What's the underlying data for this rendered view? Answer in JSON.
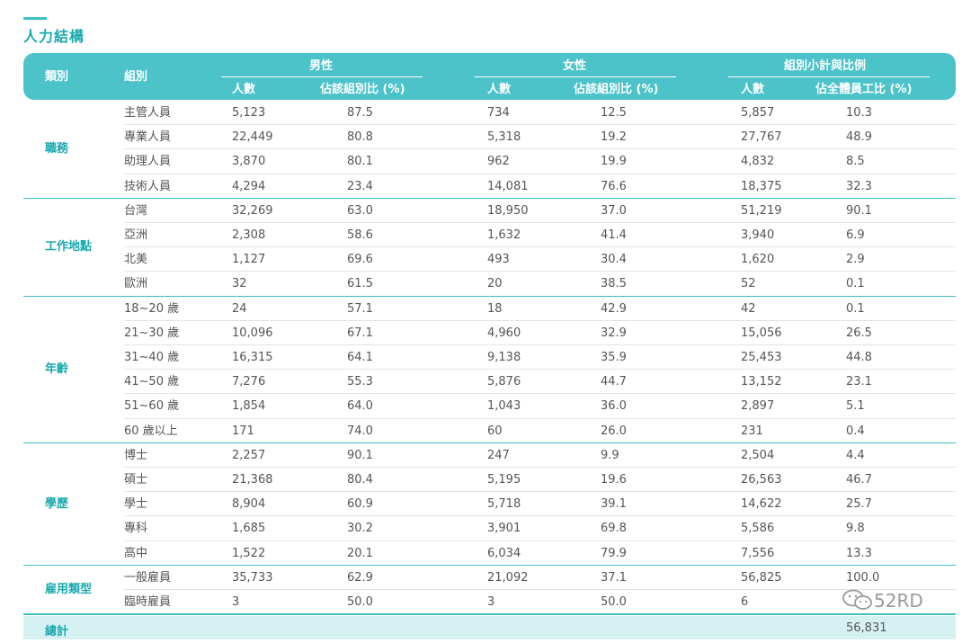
{
  "title": "人力結構",
  "header": {
    "category": "類別",
    "group": "組別",
    "male": "男性",
    "female": "女性",
    "subtotal": "組別小計與比例",
    "count": "人數",
    "pct_group": "佔該組別比 (%)",
    "pct_all": "佔全體員工比 (%)"
  },
  "categories": [
    {
      "name": "職務",
      "rows": [
        [
          "主管人員",
          "5,123",
          "87.5",
          "734",
          "12.5",
          "5,857",
          "10.3"
        ],
        [
          "專業人員",
          "22,449",
          "80.8",
          "5,318",
          "19.2",
          "27,767",
          "48.9"
        ],
        [
          "助理人員",
          "3,870",
          "80.1",
          "962",
          "19.9",
          "4,832",
          "8.5"
        ],
        [
          "技術人員",
          "4,294",
          "23.4",
          "14,081",
          "76.6",
          "18,375",
          "32.3"
        ]
      ]
    },
    {
      "name": "工作地點",
      "rows": [
        [
          "台灣",
          "32,269",
          "63.0",
          "18,950",
          "37.0",
          "51,219",
          "90.1"
        ],
        [
          "亞洲",
          "2,308",
          "58.6",
          "1,632",
          "41.4",
          "3,940",
          "6.9"
        ],
        [
          "北美",
          "1,127",
          "69.6",
          "493",
          "30.4",
          "1,620",
          "2.9"
        ],
        [
          "歐洲",
          "32",
          "61.5",
          "20",
          "38.5",
          "52",
          "0.1"
        ]
      ]
    },
    {
      "name": "年齡",
      "rows": [
        [
          "18~20 歲",
          "24",
          "57.1",
          "18",
          "42.9",
          "42",
          "0.1"
        ],
        [
          "21~30 歲",
          "10,096",
          "67.1",
          "4,960",
          "32.9",
          "15,056",
          "26.5"
        ],
        [
          "31~40 歲",
          "16,315",
          "64.1",
          "9,138",
          "35.9",
          "25,453",
          "44.8"
        ],
        [
          "41~50 歲",
          "7,276",
          "55.3",
          "5,876",
          "44.7",
          "13,152",
          "23.1"
        ],
        [
          "51~60 歲",
          "1,854",
          "64.0",
          "1,043",
          "36.0",
          "2,897",
          "5.1"
        ],
        [
          "60 歲以上",
          "171",
          "74.0",
          "60",
          "26.0",
          "231",
          "0.4"
        ]
      ]
    },
    {
      "name": "學歷",
      "rows": [
        [
          "博士",
          "2,257",
          "90.1",
          "247",
          "9.9",
          "2,504",
          "4.4"
        ],
        [
          "碩士",
          "21,368",
          "80.4",
          "5,195",
          "19.6",
          "26,563",
          "46.7"
        ],
        [
          "學士",
          "8,904",
          "60.9",
          "5,718",
          "39.1",
          "14,622",
          "25.7"
        ],
        [
          "專科",
          "1,685",
          "30.2",
          "3,901",
          "69.8",
          "5,586",
          "9.8"
        ],
        [
          "高中",
          "1,522",
          "20.1",
          "6,034",
          "79.9",
          "7,556",
          "13.3"
        ]
      ]
    },
    {
      "name": "雇用類型",
      "rows": [
        [
          "一般雇員",
          "35,733",
          "62.9",
          "21,092",
          "37.1",
          "56,825",
          "100.0"
        ],
        [
          "臨時雇員",
          "3",
          "50.0",
          "3",
          "50.0",
          "6",
          ""
        ]
      ]
    }
  ],
  "total": {
    "label": "總計",
    "value": "56,831"
  },
  "watermark": "52RD",
  "colors": {
    "accent": "#4cc3c9",
    "accent_text": "#1aa9b0",
    "total_bg": "#d6f1f2"
  }
}
